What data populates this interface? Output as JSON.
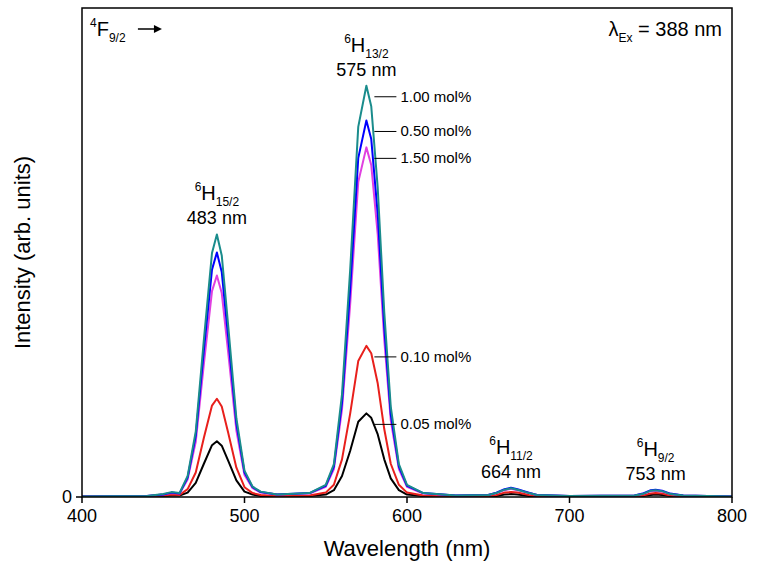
{
  "chart_data": {
    "type": "line",
    "x_label": "Wavelength (nm)",
    "y_label": "Intensity (arb. units)",
    "xlim": [
      400,
      800
    ],
    "xticks": [
      400,
      500,
      600,
      700,
      800
    ],
    "ylim": [
      0,
      100
    ],
    "yticks": [
      0
    ],
    "grid": false,
    "x": [
      400,
      440,
      450,
      455,
      460,
      465,
      470,
      475,
      480,
      483,
      486,
      490,
      495,
      500,
      505,
      510,
      520,
      540,
      550,
      555,
      560,
      565,
      570,
      575,
      578,
      582,
      586,
      590,
      595,
      600,
      610,
      630,
      650,
      655,
      660,
      664,
      668,
      675,
      680,
      700,
      740,
      745,
      750,
      753,
      757,
      762,
      770,
      800
    ],
    "series": [
      {
        "name": "1.00 mol%",
        "color": "#1a8c8c",
        "values": [
          0.1,
          0.2,
          0.6,
          1.0,
          0.8,
          4.3,
          13.4,
          32.2,
          49.9,
          53.7,
          49.4,
          34.9,
          16.1,
          5.4,
          2.1,
          1.1,
          0.5,
          0.8,
          2.5,
          6.7,
          21.0,
          46.3,
          75.7,
          84.1,
          79.9,
          63.1,
          37.8,
          18.5,
          6.7,
          2.5,
          0.8,
          0.3,
          0.4,
          0.8,
          1.5,
          1.8,
          1.5,
          0.8,
          0.4,
          0.2,
          0.3,
          0.6,
          1.3,
          1.4,
          1.2,
          0.6,
          0.3,
          0.1
        ]
      },
      {
        "name": "0.50 mol%",
        "color": "#0000ff",
        "values": [
          0.1,
          0.2,
          0.5,
          0.9,
          0.7,
          4.0,
          12.5,
          30.0,
          46.5,
          50.0,
          46.0,
          32.5,
          15.0,
          5.0,
          2.0,
          1.0,
          0.5,
          0.8,
          2.3,
          6.2,
          19.3,
          42.4,
          69.3,
          77.0,
          73.2,
          57.8,
          34.7,
          16.9,
          6.2,
          2.3,
          0.8,
          0.3,
          0.4,
          0.9,
          1.6,
          1.9,
          1.6,
          0.9,
          0.4,
          0.2,
          0.3,
          0.7,
          1.4,
          1.5,
          1.3,
          0.7,
          0.3,
          0.1
        ]
      },
      {
        "name": "1.50 mol%",
        "color": "#e040e0",
        "values": [
          0.1,
          0.2,
          0.5,
          0.8,
          0.7,
          3.6,
          11.3,
          27.2,
          42.1,
          45.3,
          41.7,
          29.4,
          13.6,
          4.5,
          1.8,
          0.9,
          0.5,
          0.7,
          2.1,
          5.7,
          17.9,
          39.3,
          64.4,
          71.5,
          67.9,
          53.6,
          32.2,
          15.7,
          5.7,
          2.1,
          0.7,
          0.3,
          0.4,
          0.8,
          1.4,
          1.7,
          1.4,
          0.8,
          0.4,
          0.2,
          0.3,
          0.6,
          1.2,
          1.3,
          1.1,
          0.6,
          0.3,
          0.1
        ]
      },
      {
        "name": "0.10 mol%",
        "color": "#e8201c",
        "values": [
          0.1,
          0.1,
          0.3,
          0.5,
          0.4,
          1.6,
          5.0,
          12.1,
          18.7,
          20.1,
          18.5,
          13.1,
          6.0,
          2.0,
          0.8,
          0.4,
          0.2,
          0.3,
          0.9,
          2.5,
          7.7,
          17.0,
          27.8,
          30.9,
          29.4,
          23.2,
          13.9,
          6.8,
          2.5,
          0.9,
          0.3,
          0.1,
          0.2,
          0.4,
          0.9,
          1.0,
          0.9,
          0.4,
          0.2,
          0.1,
          0.1,
          0.3,
          0.7,
          0.8,
          0.7,
          0.3,
          0.1,
          0.1
        ]
      },
      {
        "name": "0.05 mol%",
        "color": "#000000",
        "values": [
          0.1,
          0.1,
          0.2,
          0.3,
          0.3,
          0.9,
          2.9,
          6.8,
          10.6,
          11.4,
          10.5,
          7.4,
          3.4,
          1.1,
          0.5,
          0.2,
          0.1,
          0.2,
          0.5,
          1.4,
          4.3,
          9.4,
          15.4,
          17.1,
          16.2,
          12.8,
          7.7,
          3.8,
          1.4,
          0.5,
          0.2,
          0.1,
          0.1,
          0.2,
          0.5,
          0.6,
          0.5,
          0.2,
          0.1,
          0.1,
          0.1,
          0.2,
          0.4,
          0.5,
          0.4,
          0.2,
          0.1,
          0.0
        ]
      }
    ],
    "annotations": {
      "transition_from": [
        {
          "sup": "4"
        },
        {
          "text": "F"
        },
        {
          "sub": "9/2"
        }
      ],
      "excitation": [
        {
          "text": "λ"
        },
        {
          "sub": "Ex"
        },
        {
          "text": " = 388 nm"
        }
      ],
      "peaks": [
        {
          "x": 483,
          "term": [
            {
              "sup": "6"
            },
            {
              "text": "H"
            },
            {
              "sub": "15/2"
            }
          ],
          "label": "483 nm"
        },
        {
          "x": 575,
          "term": [
            {
              "sup": "6"
            },
            {
              "text": "H"
            },
            {
              "sub": "13/2"
            }
          ],
          "label": "575 nm"
        },
        {
          "x": 664,
          "term": [
            {
              "sup": "6"
            },
            {
              "text": "H"
            },
            {
              "sub": "11/2"
            }
          ],
          "label": "664 nm"
        },
        {
          "x": 753,
          "term": [
            {
              "sup": "6"
            },
            {
              "text": "H"
            },
            {
              "sub": "9/2"
            }
          ],
          "label": "753 nm"
        }
      ]
    }
  }
}
